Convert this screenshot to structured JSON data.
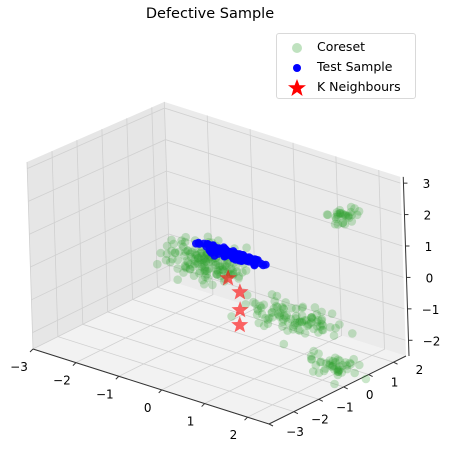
{
  "chart_data": {
    "type": "scatter",
    "title": "Defective Sample",
    "projection": "3d",
    "axes": {
      "x": {
        "ticks": [
          -3,
          -2,
          -1,
          0,
          1,
          2
        ],
        "tick_labels": [
          "−3",
          "−2",
          "−1",
          "0",
          "1",
          "2"
        ],
        "range": [
          -3,
          2.5
        ]
      },
      "y": {
        "ticks": [
          -3,
          -2,
          -1,
          0,
          1,
          2
        ],
        "tick_labels": [
          "−3",
          "−2",
          "−1",
          "0",
          "1",
          "2"
        ],
        "range": [
          -3,
          2.5
        ]
      },
      "z": {
        "ticks": [
          -2,
          -1,
          0,
          1,
          2,
          3
        ],
        "tick_labels": [
          "−2",
          "−1",
          "0",
          "1",
          "2",
          "3"
        ],
        "range": [
          -2.5,
          3.2
        ]
      }
    },
    "grid": true,
    "legend_position": "top-right",
    "series": [
      {
        "name": "Coreset",
        "marker": "circle",
        "color": "#2ca02c",
        "alpha": 0.25,
        "clusters": [
          {
            "center": [
              -1.0,
              0.6,
              -0.3
            ],
            "spread": [
              0.9,
              0.7,
              0.45
            ],
            "count": 150
          },
          {
            "center": [
              1.0,
              1.2,
              -1.6
            ],
            "spread": [
              0.7,
              0.6,
              0.35
            ],
            "count": 60
          },
          {
            "center": [
              1.8,
              0.8,
              -2.4
            ],
            "spread": [
              0.5,
              0.6,
              0.25
            ],
            "count": 45
          },
          {
            "center": [
              1.6,
              1.6,
              1.9
            ],
            "spread": [
              0.35,
              0.35,
              0.3
            ],
            "count": 30
          },
          {
            "center": [
              0.5,
              0.6,
              -1.2
            ],
            "spread": [
              0.5,
              0.5,
              0.4
            ],
            "count": 35
          }
        ]
      },
      {
        "name": "Test Sample",
        "marker": "circle",
        "color": "#0000ff",
        "alpha": 0.9,
        "clusters": [
          {
            "center": [
              -0.6,
              0.9,
              0.0
            ],
            "spread": [
              0.7,
              0.15,
              0.08
            ],
            "count": 140
          }
        ]
      },
      {
        "name": "K Neighbours",
        "marker": "star",
        "color": "#ff0000",
        "alpha": 0.6,
        "points": [
          [
            -0.35,
            0.35,
            -0.45
          ],
          [
            -0.2,
            0.55,
            -0.9
          ],
          [
            -0.15,
            0.45,
            -1.4
          ],
          [
            -0.05,
            0.25,
            -1.75
          ]
        ]
      }
    ]
  }
}
